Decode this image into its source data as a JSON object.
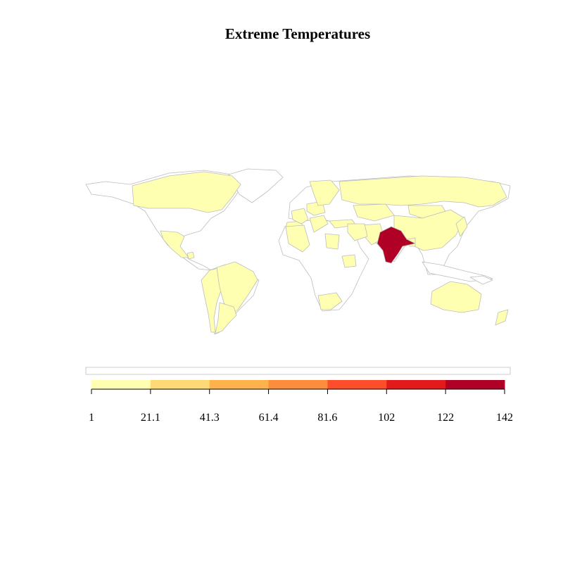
{
  "title": "Extreme Temperatures",
  "colors": {
    "land_default": "#ffffff",
    "border": "#bdbdbd",
    "highlight": "#b10026"
  },
  "legend": {
    "palette": [
      "#ffffb2",
      "#fed976",
      "#feb24c",
      "#fd8d3c",
      "#fc4e2a",
      "#e31a1c",
      "#b10026"
    ],
    "breaks": [
      "1",
      "21.1",
      "41.3",
      "61.4",
      "81.6",
      "102",
      "122",
      "142"
    ]
  },
  "chart_data": {
    "type": "choropleth",
    "title": "Extreme Temperatures",
    "scale": "sequential YlOrRd",
    "breaks": [
      1,
      21.1,
      41.3,
      61.4,
      81.6,
      102,
      122,
      142
    ],
    "regions_by_class": {
      "class_1_to_21.1": [
        "Canada",
        "Mexico",
        "Guatemala",
        "Peru",
        "Bolivia",
        "Brazil",
        "Paraguay",
        "Argentina",
        "Chile",
        "Portugal",
        "Spain",
        "France",
        "Netherlands",
        "Germany",
        "Poland",
        "Italy",
        "Greece",
        "Romania",
        "Bulgaria",
        "Norway",
        "Sweden",
        "Finland",
        "Russia",
        "Turkey",
        "Algeria",
        "Egypt",
        "Ethiopia",
        "South Africa",
        "Kazakhstan",
        "Mongolia",
        "China",
        "Japan",
        "Bangladesh",
        "Pakistan",
        "Afghanistan",
        "Iran",
        "Australia",
        "New Zealand"
      ],
      "class_122_to_142": [
        "India"
      ]
    }
  }
}
